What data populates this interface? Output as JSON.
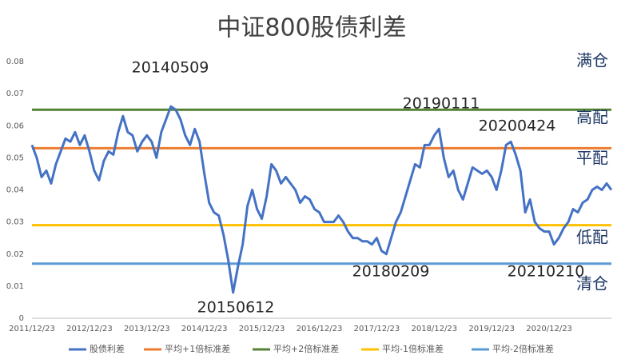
{
  "chart_data": {
    "type": "line",
    "title": "中证800股债利差",
    "categories": [
      "2011/12/23",
      null,
      null,
      null,
      null,
      null,
      null,
      null,
      null,
      null,
      null,
      null,
      "2012/12/23",
      null,
      null,
      null,
      null,
      null,
      null,
      null,
      null,
      null,
      null,
      null,
      "2013/12/23",
      null,
      null,
      null,
      null,
      null,
      null,
      null,
      null,
      null,
      null,
      null,
      "2014/12/23",
      null,
      null,
      null,
      null,
      null,
      null,
      null,
      null,
      null,
      null,
      null,
      "2015/12/23",
      null,
      null,
      null,
      null,
      null,
      null,
      null,
      null,
      null,
      null,
      null,
      "2016/12/23",
      null,
      null,
      null,
      null,
      null,
      null,
      null,
      null,
      null,
      null,
      null,
      "2017/12/23",
      null,
      null,
      null,
      null,
      null,
      null,
      null,
      null,
      null,
      null,
      null,
      "2018/12/23",
      null,
      null,
      null,
      null,
      null,
      null,
      null,
      null,
      null,
      null,
      null,
      "2019/12/23",
      null,
      null,
      null,
      null,
      null,
      null,
      null,
      null,
      null,
      null,
      null,
      "2020/12/23",
      null,
      null,
      null,
      null,
      null,
      null,
      null,
      null,
      null,
      null,
      null,
      null,
      null
    ],
    "series": [
      {
        "name": "股债利差",
        "color": "#4472c4",
        "values": [
          0.054,
          0.05,
          0.044,
          0.046,
          0.042,
          0.048,
          0.052,
          0.056,
          0.055,
          0.058,
          0.054,
          0.057,
          0.052,
          0.046,
          0.043,
          0.049,
          0.052,
          0.051,
          0.058,
          0.063,
          0.058,
          0.057,
          0.052,
          0.055,
          0.057,
          0.055,
          0.05,
          0.058,
          0.062,
          0.066,
          0.065,
          0.062,
          0.057,
          0.054,
          0.059,
          0.055,
          0.045,
          0.036,
          0.033,
          0.032,
          0.026,
          0.018,
          0.008,
          0.016,
          0.023,
          0.035,
          0.04,
          0.034,
          0.031,
          0.038,
          0.048,
          0.046,
          0.042,
          0.044,
          0.042,
          0.04,
          0.036,
          0.038,
          0.037,
          0.034,
          0.033,
          0.03,
          0.03,
          0.03,
          0.032,
          0.03,
          0.027,
          0.025,
          0.025,
          0.024,
          0.024,
          0.023,
          0.025,
          0.021,
          0.02,
          0.025,
          0.03,
          0.033,
          0.038,
          0.043,
          0.048,
          0.047,
          0.054,
          0.054,
          0.057,
          0.059,
          0.05,
          0.044,
          0.046,
          0.04,
          0.037,
          0.042,
          0.047,
          0.046,
          0.045,
          0.046,
          0.044,
          0.04,
          0.046,
          0.054,
          0.055,
          0.051,
          0.046,
          0.033,
          0.037,
          0.03,
          0.028,
          0.027,
          0.027,
          0.023,
          0.025,
          0.028,
          0.03,
          0.034,
          0.033,
          0.036,
          0.037,
          0.04,
          0.041,
          0.04,
          0.042,
          0.04
        ]
      }
    ],
    "reference_lines": [
      {
        "name": "平均+1倍标准差",
        "color": "#ed7d31",
        "value": 0.053
      },
      {
        "name": "平均+2倍标准差",
        "color": "#548235",
        "value": 0.065
      },
      {
        "name": "平均-1倍标准差",
        "color": "#ffc000",
        "value": 0.029
      },
      {
        "name": "平均-2倍标准差",
        "color": "#5b9bd5",
        "value": 0.017
      }
    ],
    "ylim": [
      0,
      0.08
    ],
    "yticks": [
      0,
      0.01,
      0.02,
      0.03,
      0.04,
      0.05,
      0.06,
      0.07,
      0.08
    ],
    "grid": false,
    "annotations": [
      "20140509",
      "20150612",
      "20180209",
      "20190111",
      "20200424",
      "20210210"
    ],
    "zone_labels": [
      "满仓",
      "高配",
      "平配",
      "低配",
      "清仓"
    ],
    "legend": "bottom"
  }
}
